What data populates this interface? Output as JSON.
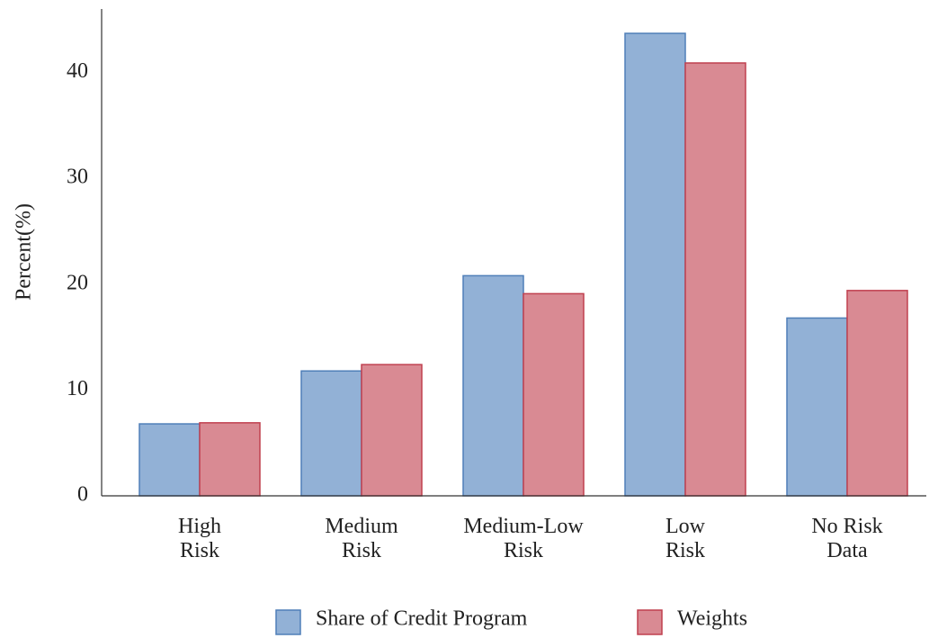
{
  "chart_data": {
    "type": "bar",
    "y_label": "Percent(%)",
    "categories": [
      "High\nRisk",
      "Medium\nRisk",
      "Medium-Low\nRisk",
      "Low\nRisk",
      "No Risk\nData"
    ],
    "series": [
      {
        "name": "Share of Credit Program",
        "color": "#92b1d6",
        "edge": "#4f7fb8",
        "values": [
          6.8,
          11.8,
          20.8,
          43.7,
          16.8
        ]
      },
      {
        "name": "Weights",
        "color": "#d98a93",
        "edge": "#c0404f",
        "values": [
          6.9,
          12.4,
          19.1,
          40.9,
          19.4
        ]
      }
    ],
    "ylim": [
      0,
      46
    ],
    "yticks": [
      0,
      10,
      20,
      30,
      40
    ],
    "grid": false,
    "legend": "bottom"
  }
}
